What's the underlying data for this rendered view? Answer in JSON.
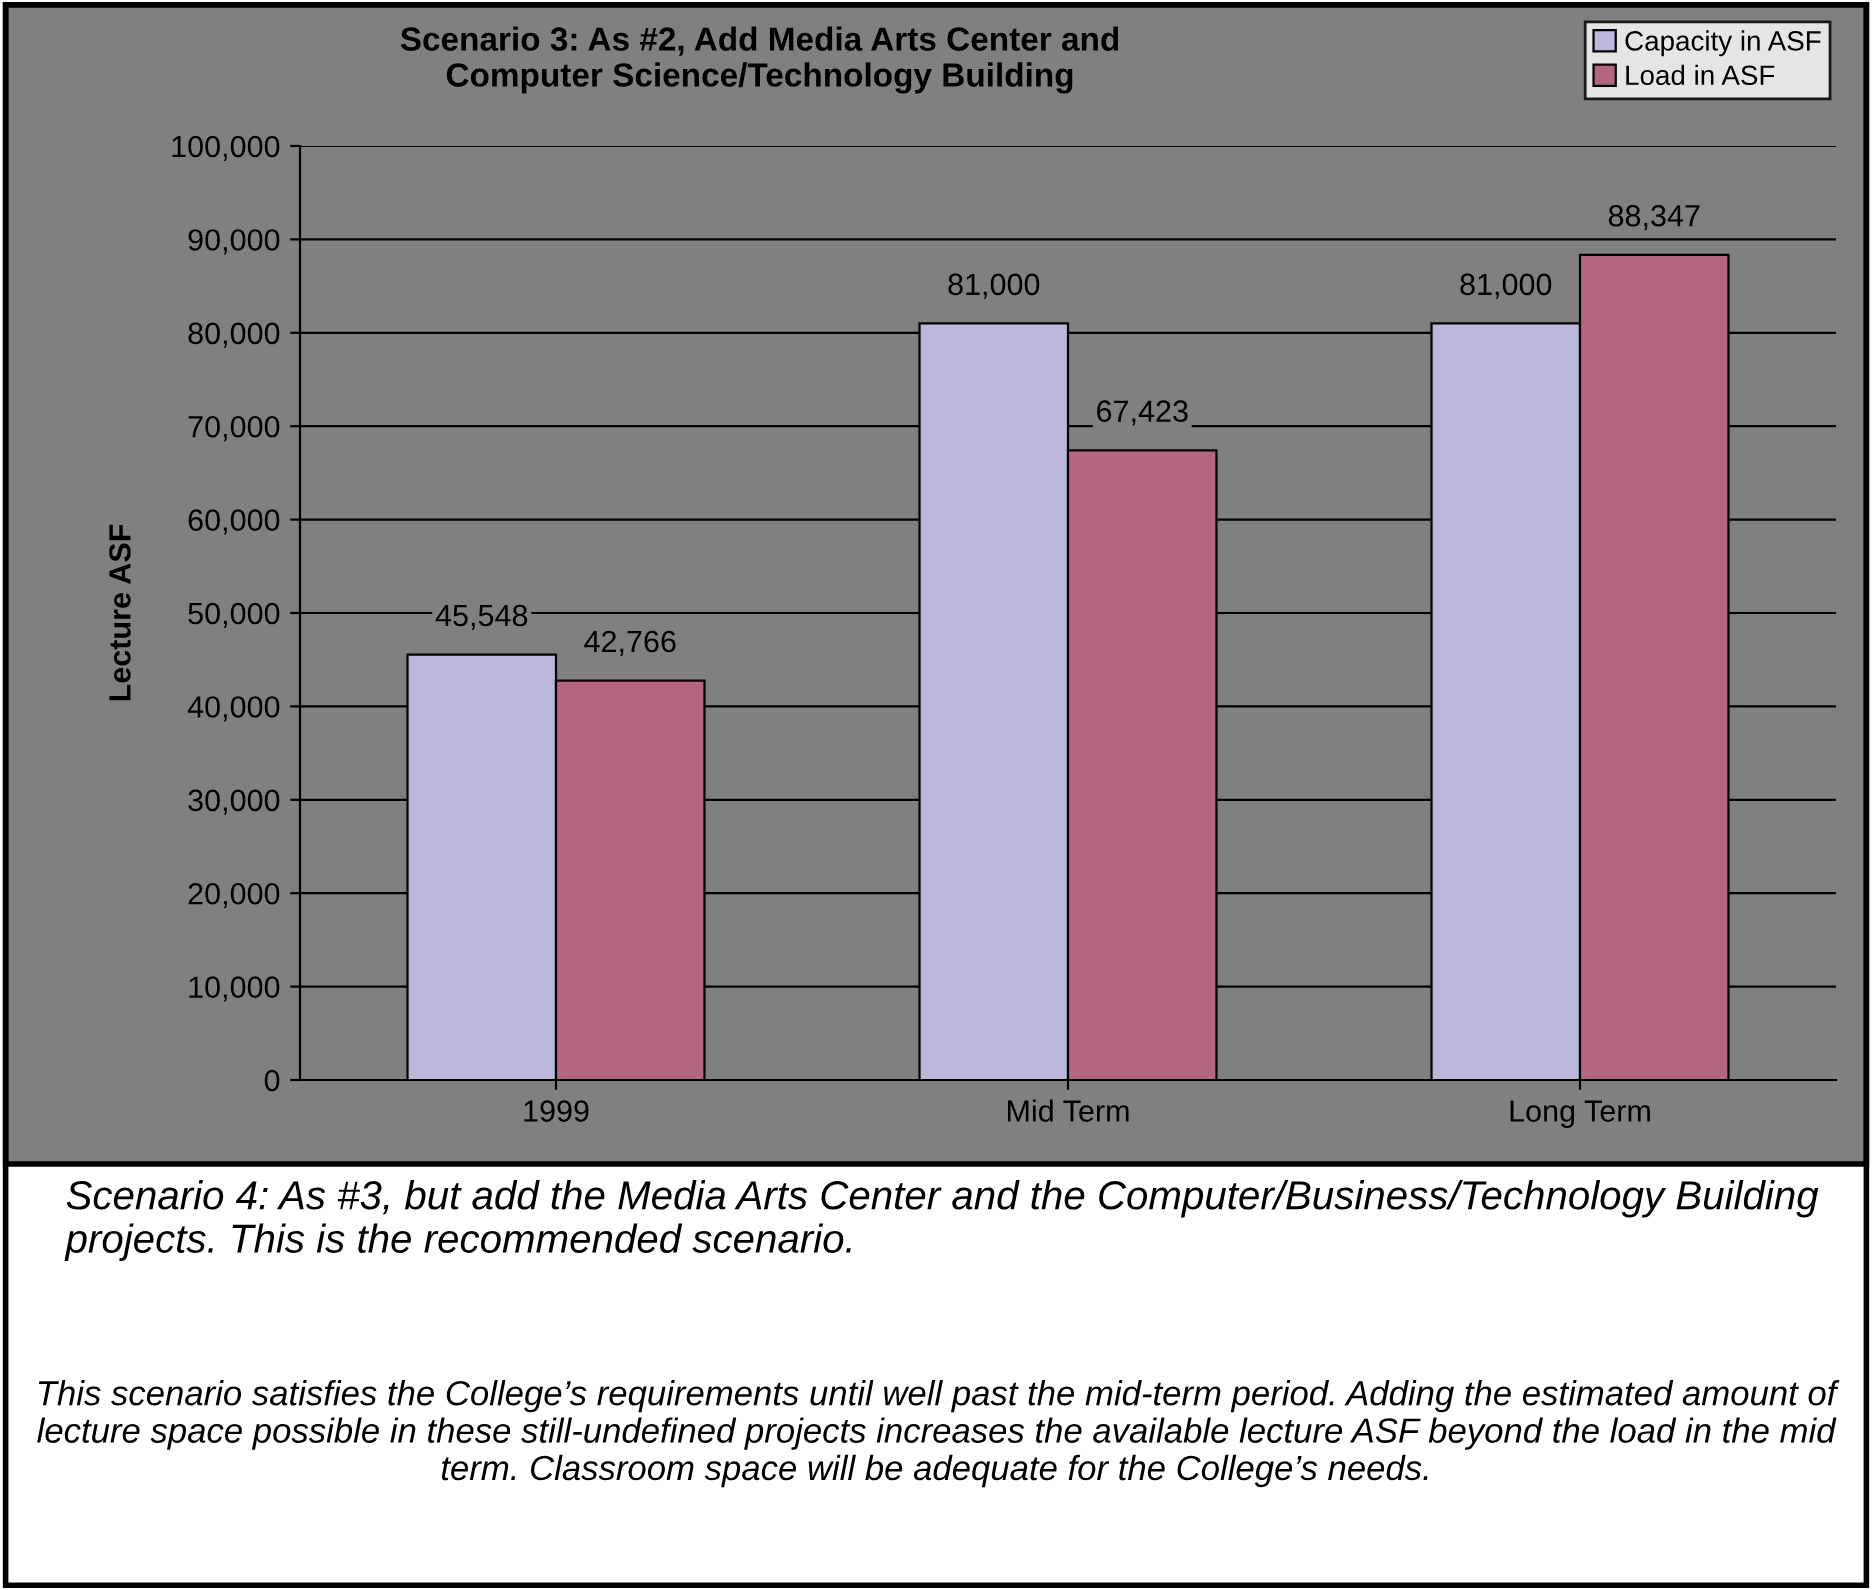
{
  "chart_data": {
    "type": "bar",
    "title": "Scenario 3: As #2, Add Media Arts Center and\nComputer Science/Technology Building",
    "ylabel": "Lecture ASF",
    "categories": [
      "1999",
      "Mid Term",
      "Long Term"
    ],
    "series": [
      {
        "name": "Capacity in ASF",
        "color": "#bcb8dc",
        "values": [
          45548,
          81000,
          81000
        ],
        "value_labels": [
          "45,548",
          "81,000",
          "81,000"
        ]
      },
      {
        "name": "Load in ASF",
        "color": "#b5667f",
        "values": [
          42766,
          67423,
          88347
        ],
        "value_labels": [
          "42,766",
          "67,423",
          "88,347"
        ]
      }
    ],
    "ylim": [
      0,
      100000
    ],
    "yticks": [
      {
        "value": 0,
        "label": "0"
      },
      {
        "value": 10000,
        "label": "10,000"
      },
      {
        "value": 20000,
        "label": "20,000"
      },
      {
        "value": 30000,
        "label": "30,000"
      },
      {
        "value": 40000,
        "label": "40,000"
      },
      {
        "value": 50000,
        "label": "50,000"
      },
      {
        "value": 60000,
        "label": "60,000"
      },
      {
        "value": 70000,
        "label": "70,000"
      },
      {
        "value": 80000,
        "label": "80,000"
      },
      {
        "value": 90000,
        "label": "90,000"
      },
      {
        "value": 100000,
        "label": "100,000"
      }
    ],
    "grid": "y",
    "legend": "top right",
    "annotations": [
      "Scenario 4: As #3, but add the Media Arts Center and the Computer/Business/Technology Building projects. This is the recommended scenario.",
      "This scenario satisfies the College’s requirements until well past the mid-term period. Adding the estimated amount of lecture space possible in these still-undefined projects increases the available lecture ASF beyond the load in the mid term. Classroom space will be adequate for the College’s needs."
    ]
  }
}
